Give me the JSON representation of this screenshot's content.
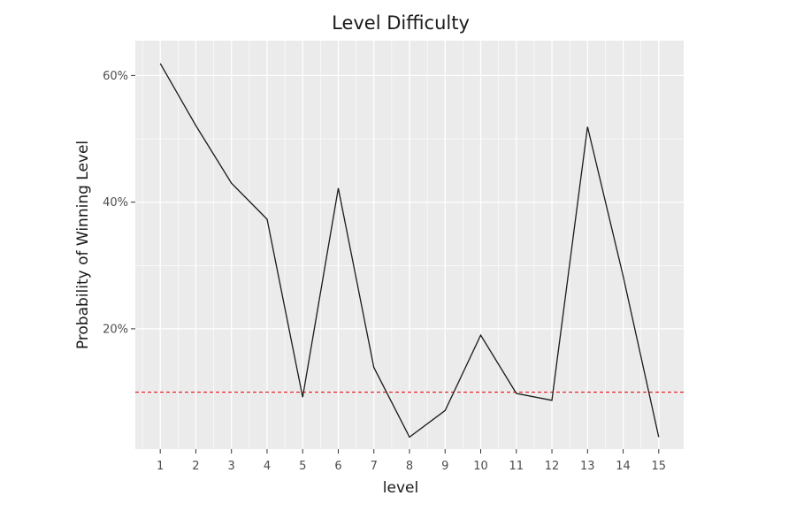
{
  "chart_data": {
    "type": "line",
    "title": "Level Difficulty",
    "xlabel": "level",
    "ylabel": "Probability of Winning Level",
    "x": [
      1,
      2,
      3,
      4,
      5,
      6,
      7,
      8,
      9,
      10,
      11,
      12,
      13,
      14,
      15
    ],
    "x_tick_labels": [
      "1",
      "2",
      "3",
      "4",
      "5",
      "6",
      "7",
      "8",
      "9",
      "10",
      "11",
      "12",
      "13",
      "14",
      "15"
    ],
    "y_tick_values": [
      0.2,
      0.4,
      0.6
    ],
    "y_tick_labels": [
      "20%",
      "40%",
      "60%"
    ],
    "series": [
      {
        "values": [
          0.619,
          0.521,
          0.43,
          0.373,
          0.092,
          0.422,
          0.139,
          0.029,
          0.071,
          0.19,
          0.098,
          0.087,
          0.519,
          0.283,
          0.029
        ],
        "color": "#1a1a1a"
      }
    ],
    "reference_line": {
      "y": 0.1,
      "style": "dashed",
      "color": "#e8141c"
    },
    "xlim": [
      0.3,
      15.7
    ],
    "ylim": [
      0.01,
      0.655
    ],
    "grid": true,
    "panel_background": "#ebebeb",
    "grid_color": "#ffffff"
  }
}
